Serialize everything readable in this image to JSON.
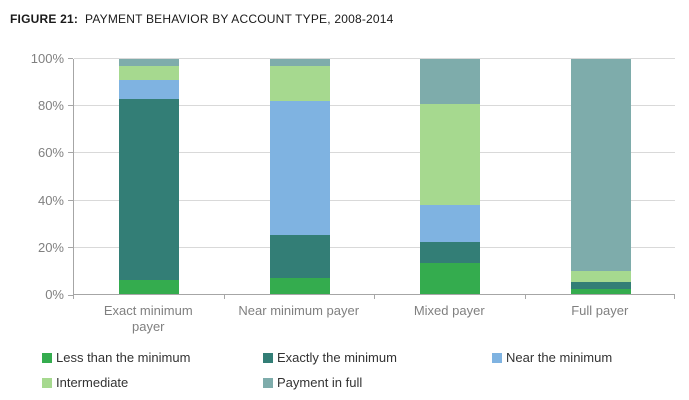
{
  "figure": {
    "label": "FIGURE 21:",
    "title": "PAYMENT BEHAVIOR BY ACCOUNT TYPE, 2008-2014"
  },
  "chart_data": {
    "type": "bar",
    "stacked": true,
    "title": "FIGURE 21: PAYMENT BEHAVIOR BY ACCOUNT TYPE, 2008-2014",
    "categories": [
      "Exact minimum payer",
      "Near minimum payer",
      "Mixed payer",
      "Full payer"
    ],
    "series": [
      {
        "name": "Less than the minimum",
        "color": "#34AC4E",
        "values": [
          6,
          7,
          13,
          2
        ]
      },
      {
        "name": "Exactly the minimum",
        "color": "#337E76",
        "values": [
          77,
          18,
          9,
          3
        ]
      },
      {
        "name": "Near the minimum",
        "color": "#7FB3E1",
        "values": [
          8,
          57,
          16,
          0
        ]
      },
      {
        "name": "Intermediate",
        "color": "#A6D98F",
        "values": [
          6,
          15,
          43,
          5
        ]
      },
      {
        "name": "Payment in full",
        "color": "#7EACAB",
        "values": [
          3,
          3,
          19,
          90
        ]
      }
    ],
    "xlabel": "",
    "ylabel": "",
    "ylim": [
      0,
      100
    ],
    "y_tick_labels": [
      "0%",
      "20%",
      "40%",
      "60%",
      "80%",
      "100%"
    ],
    "y_unit": "%",
    "grid": true,
    "legend_position": "bottom"
  },
  "colors": {
    "gridline": "#D9D9D9",
    "axis": "#A6A6A6",
    "tick_label": "#808080",
    "legend_text": "#333333",
    "title_text": "#1A1A1A",
    "background": "#FFFFFF"
  }
}
